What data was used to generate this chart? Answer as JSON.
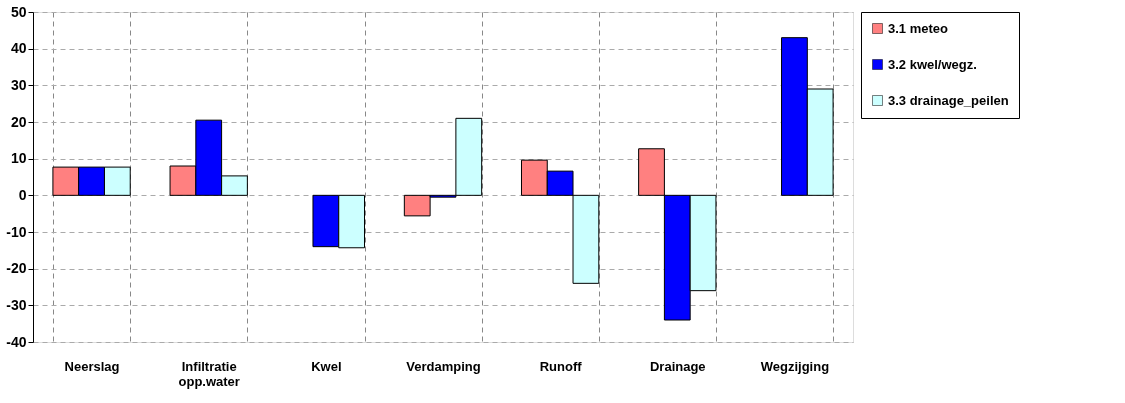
{
  "chart_data": {
    "type": "bar",
    "categories": [
      "Neerslag",
      "Infiltratie opp.water",
      "Kwel",
      "Verdamping",
      "Runoff",
      "Drainage",
      "Wegzijging"
    ],
    "series": [
      {
        "name": "3.1 meteo",
        "color": "#ff8080",
        "values": [
          7.7,
          8,
          null,
          -5.6,
          9.6,
          12.7,
          null
        ]
      },
      {
        "name": "3.2 kwel/wegz.",
        "color": "#0000ff",
        "values": [
          7.7,
          20.5,
          -14,
          -0.5,
          6.6,
          -34,
          43
        ]
      },
      {
        "name": "3.3 drainage_peilen",
        "color": "#ccffff",
        "values": [
          7.7,
          5.3,
          -14.3,
          21,
          -24,
          -26,
          29
        ]
      }
    ],
    "ylim": [
      -40,
      50
    ],
    "yticks": [
      -40,
      -30,
      -20,
      -10,
      0,
      10,
      20,
      30,
      40,
      50
    ],
    "grid": true,
    "legend": "right"
  }
}
